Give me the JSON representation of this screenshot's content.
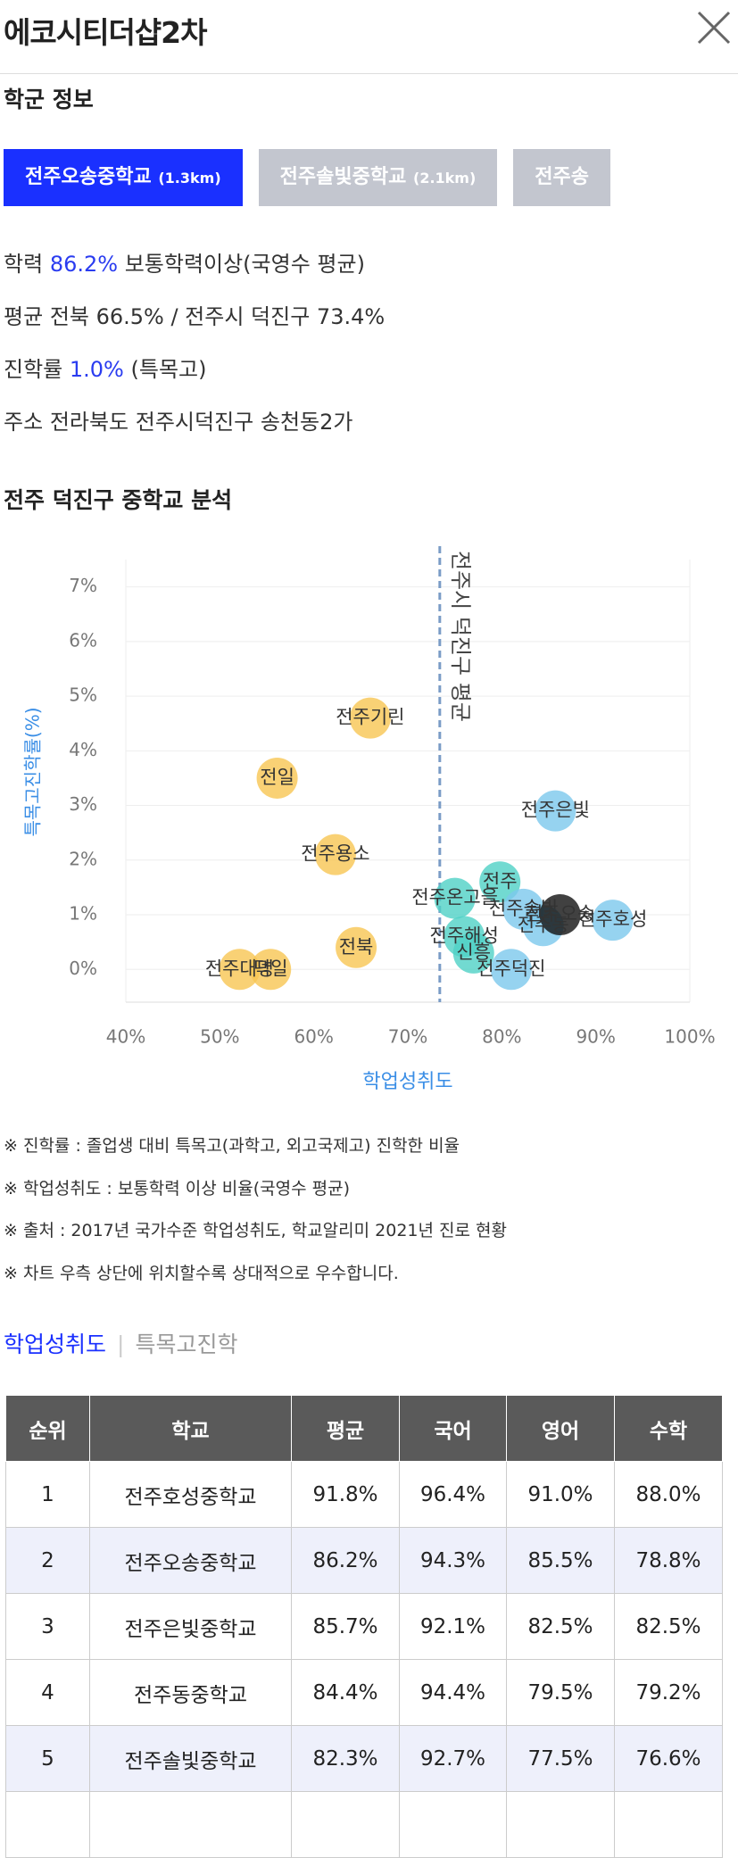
{
  "header": {
    "title": "에코시티더샵2차"
  },
  "section_title": "학군 정보",
  "school_tabs": [
    {
      "name": "전주오송중학교",
      "distance": "(1.3km)"
    },
    {
      "name": "전주솔빛중학교",
      "distance": "(2.1km)"
    },
    {
      "name": "전주송"
    }
  ],
  "info": [
    {
      "label": "학력",
      "value": "86.2%",
      "text": "보통학력이상(국영수 평균)"
    },
    {
      "label": "평균",
      "text": "전북 66.5% / 전주시 덕진구 73.4%"
    },
    {
      "label": "진학률",
      "value": "1.0%",
      "text": "(특목고)"
    },
    {
      "label": "주소",
      "text": "전라북도 전주시덕진구 송천동2가"
    }
  ],
  "analysis_title": "전주 덕진구 중학교 분석",
  "chart_data": {
    "type": "scatter",
    "xlabel": "학업성취도",
    "ylabel": "특목고진학률(%)",
    "xlim": [
      40,
      100
    ],
    "ylim": [
      -0.6,
      7.5
    ],
    "xticks": [
      {
        "value": 40,
        "label": "40%"
      },
      {
        "value": 50,
        "label": "50%"
      },
      {
        "value": 60,
        "label": "60%"
      },
      {
        "value": 70,
        "label": "70%"
      },
      {
        "value": 80,
        "label": "80%"
      },
      {
        "value": 90,
        "label": "90%"
      },
      {
        "value": 100,
        "label": "100%"
      }
    ],
    "yticks": [
      {
        "value": 0,
        "label": "0%"
      },
      {
        "value": 1,
        "label": "1%"
      },
      {
        "value": 2,
        "label": "2%"
      },
      {
        "value": 3,
        "label": "3%"
      },
      {
        "value": 4,
        "label": "4%"
      },
      {
        "value": 5,
        "label": "5%"
      },
      {
        "value": 6,
        "label": "6%"
      },
      {
        "value": 7,
        "label": "7%"
      }
    ],
    "grid": true,
    "reference_line": {
      "value": 73.4,
      "label": "전주시 덕진구 평균",
      "color": "#7a9cc6"
    },
    "points": [
      {
        "label": "전주기린",
        "x": 66.0,
        "y": 4.6,
        "color": "#f7c653"
      },
      {
        "label": "전일",
        "x": 56.1,
        "y": 3.5,
        "color": "#f7c653"
      },
      {
        "label": "전주용소",
        "x": 62.3,
        "y": 2.1,
        "color": "#f7c653"
      },
      {
        "label": "전북",
        "x": 64.5,
        "y": 0.4,
        "color": "#f7c653"
      },
      {
        "label": "전주대명",
        "x": 52.1,
        "y": 0.0,
        "color": "#f7c653"
      },
      {
        "label": "덕일",
        "x": 55.4,
        "y": 0.0,
        "color": "#f7c653"
      },
      {
        "label": "전주온고을",
        "x": 75.0,
        "y": 1.3,
        "color": "#4fd1c5"
      },
      {
        "label": "전주해성",
        "x": 76.0,
        "y": 0.6,
        "color": "#4fd1c5"
      },
      {
        "label": "신흥",
        "x": 77.0,
        "y": 0.3,
        "color": "#4fd1c5"
      },
      {
        "label": "전주",
        "x": 79.8,
        "y": 1.6,
        "color": "#4fd1c5"
      },
      {
        "label": "전주덕진",
        "x": 81.0,
        "y": 0.0,
        "color": "#7cc8ec"
      },
      {
        "label": "전주솔빛",
        "x": 82.3,
        "y": 1.1,
        "color": "#7cc8ec"
      },
      {
        "label": "전주동",
        "x": 84.4,
        "y": 0.8,
        "color": "#7cc8ec"
      },
      {
        "label": "전주은빛",
        "x": 85.7,
        "y": 2.9,
        "color": "#7cc8ec"
      },
      {
        "label": "전주호성",
        "x": 91.8,
        "y": 0.9,
        "color": "#7cc8ec"
      },
      {
        "label": "전주오송",
        "x": 86.2,
        "y": 1.0,
        "color": "#111111"
      }
    ]
  },
  "notes": [
    "※ 진학률 : 졸업생 대비 특목고(과학고, 외고국제고) 진학한 비율",
    "※ 학업성취도 : 보통학력 이상 비율(국영수 평균)",
    "※ 출처 : 2017년 국가수준 학업성취도, 학교알리미 2021년 진로 현황",
    "※ 차트 우측 상단에 위치할수록 상대적으로 우수합니다."
  ],
  "table_tabs": [
    "학업성취도",
    "특목고진학"
  ],
  "table": {
    "header": [
      "순위",
      "학교",
      "평균",
      "국어",
      "영어",
      "수학"
    ],
    "rows": [
      [
        "1",
        "전주호성중학교",
        "91.8%",
        "96.4%",
        "91.0%",
        "88.0%"
      ],
      [
        "2",
        "전주오송중학교",
        "86.2%",
        "94.3%",
        "85.5%",
        "78.8%"
      ],
      [
        "3",
        "전주은빛중학교",
        "85.7%",
        "92.1%",
        "82.5%",
        "82.5%"
      ],
      [
        "4",
        "전주동중학교",
        "84.4%",
        "94.4%",
        "79.5%",
        "79.2%"
      ],
      [
        "5",
        "전주솔빛중학교",
        "82.3%",
        "92.7%",
        "77.5%",
        "76.6%"
      ]
    ]
  }
}
